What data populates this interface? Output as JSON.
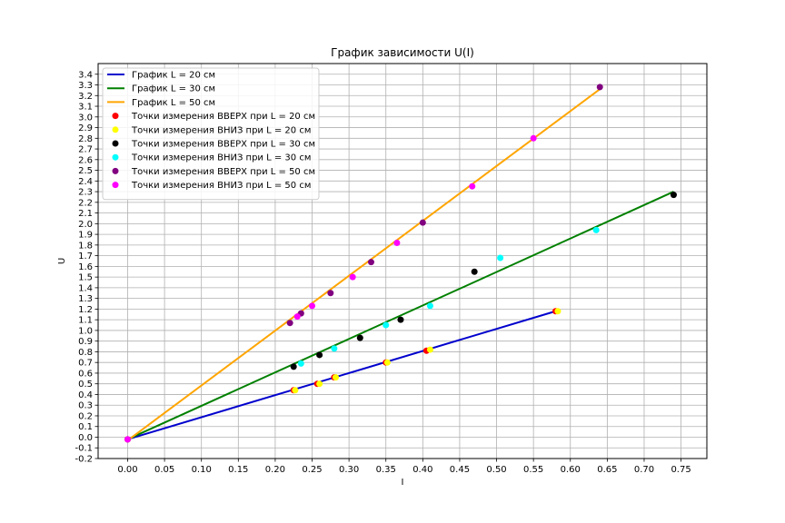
{
  "chart_data": {
    "type": "scatter",
    "title": "График зависимости U(I)",
    "xlabel": "I",
    "ylabel": "U",
    "xlim": [
      -0.04,
      0.785
    ],
    "ylim": [
      -0.2,
      3.5
    ],
    "xticks": [
      "0.00",
      "0.05",
      "0.10",
      "0.15",
      "0.20",
      "0.25",
      "0.30",
      "0.35",
      "0.40",
      "0.45",
      "0.50",
      "0.55",
      "0.60",
      "0.65",
      "0.70",
      "0.75"
    ],
    "yticks": [
      "-0.2",
      "-0.1",
      "0.0",
      "0.1",
      "0.2",
      "0.3",
      "0.4",
      "0.5",
      "0.6",
      "0.7",
      "0.8",
      "0.9",
      "1.0",
      "1.1",
      "1.2",
      "1.3",
      "1.4",
      "1.5",
      "1.6",
      "1.7",
      "1.8",
      "1.9",
      "2.0",
      "2.1",
      "2.2",
      "2.3",
      "2.4",
      "2.5",
      "2.6",
      "2.7",
      "2.8",
      "2.9",
      "3.0",
      "3.1",
      "3.2",
      "3.3",
      "3.4"
    ],
    "grid": true,
    "legend_position": "top-left",
    "lines": [
      {
        "name": "График L = 20 см",
        "color": "#0000cd",
        "x": [
          0.0,
          0.58
        ],
        "y": [
          -0.02,
          1.18
        ]
      },
      {
        "name": "График L = 30 см",
        "color": "#008000",
        "x": [
          0.0,
          0.74
        ],
        "y": [
          -0.02,
          2.3
        ]
      },
      {
        "name": "График L = 50 см",
        "color": "#ffa500",
        "x": [
          0.0,
          0.64
        ],
        "y": [
          -0.03,
          3.26
        ]
      }
    ],
    "series": [
      {
        "name": "Точки измерения ВВЕРХ при L = 20 см",
        "color": "#ff0000",
        "x": [
          0.0,
          0.225,
          0.257,
          0.28,
          0.35,
          0.405,
          0.58
        ],
        "y": [
          -0.02,
          0.44,
          0.5,
          0.56,
          0.7,
          0.81,
          1.18
        ]
      },
      {
        "name": "Точки измерения ВНИЗ при L = 20 см",
        "color": "#ffff00",
        "x": [
          0.0,
          0.227,
          0.26,
          0.282,
          0.352,
          0.41,
          0.583
        ],
        "y": [
          -0.02,
          0.44,
          0.5,
          0.56,
          0.7,
          0.82,
          1.18
        ]
      },
      {
        "name": "Точки измерения ВВЕРХ при L = 30 см",
        "color": "#000000",
        "x": [
          0.225,
          0.26,
          0.315,
          0.37,
          0.47,
          0.74
        ],
        "y": [
          0.66,
          0.77,
          0.93,
          1.1,
          1.55,
          2.27
        ]
      },
      {
        "name": "Точки измерения ВНИЗ при L = 30 см",
        "color": "#00ffff",
        "x": [
          0.235,
          0.28,
          0.35,
          0.41,
          0.505,
          0.635
        ],
        "y": [
          0.69,
          0.83,
          1.05,
          1.23,
          1.68,
          1.94
        ]
      },
      {
        "name": "Точки измерения ВВЕРХ при L = 50 см",
        "color": "#800080",
        "x": [
          0.0,
          0.22,
          0.235,
          0.275,
          0.33,
          0.4,
          0.64
        ],
        "y": [
          -0.02,
          1.07,
          1.16,
          1.35,
          1.64,
          2.01,
          3.28
        ]
      },
      {
        "name": "Точки измерения ВНИЗ при L = 50 см",
        "color": "#ff00ff",
        "x": [
          0.0,
          0.23,
          0.25,
          0.305,
          0.365,
          0.467,
          0.55
        ],
        "y": [
          -0.02,
          1.13,
          1.23,
          1.5,
          1.82,
          2.35,
          2.8
        ]
      }
    ]
  }
}
